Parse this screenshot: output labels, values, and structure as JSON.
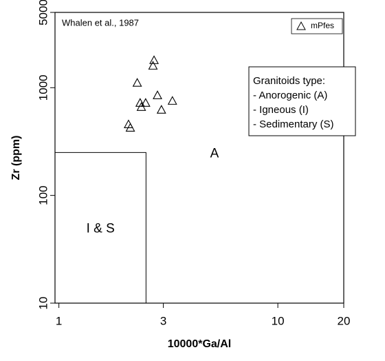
{
  "chart_data": {
    "type": "scatter",
    "annotation": "Whalen et al., 1987",
    "x_label": "10000*Ga/Al",
    "y_label": "Zr (ppm)",
    "xlog": true,
    "ylog": true,
    "xlim": [
      0.96,
      20
    ],
    "ylim": [
      10,
      5000
    ],
    "xticks": [
      1,
      3,
      10,
      20
    ],
    "yticks": [
      10,
      100,
      1000,
      5000
    ],
    "legend_position": "upper right",
    "series": [
      {
        "name": "mPfes",
        "color": "#000000",
        "x": [
          2.72,
          2.69,
          2.28,
          2.82,
          3.3,
          2.35,
          2.49,
          2.38,
          2.94,
          2.08,
          2.12
        ],
        "values": [
          1800,
          1600,
          1110,
          850,
          755,
          723,
          723,
          662,
          624,
          457,
          425
        ]
      }
    ],
    "fields": [
      {
        "label": "I & S",
        "xmax": 2.5,
        "ymax": 250
      },
      {
        "label": "A"
      }
    ],
    "info_box": [
      "Granitoids type:",
      "- Anorogenic (A)",
      "- Igneous (I)",
      "- Sedimentary (S)"
    ]
  }
}
